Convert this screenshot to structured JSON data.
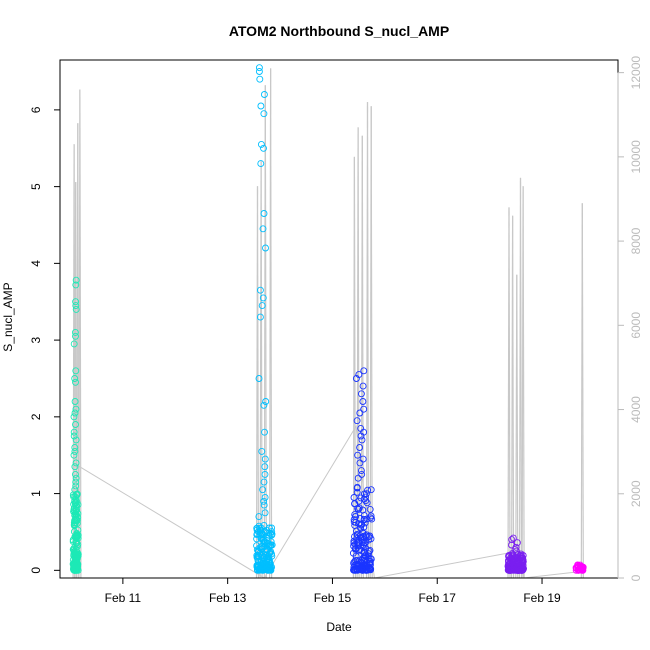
{
  "chart_data": {
    "type": "scatter",
    "title": "ATOM2 Northbound S_nucl_AMP",
    "xlabel": "Date",
    "ylabel": "S_nucl_AMP",
    "x_tick_labels": [
      "Feb 11",
      "Feb 13",
      "Feb 15",
      "Feb 17",
      "Feb 19"
    ],
    "x_tick_days": [
      11,
      13,
      15,
      17,
      19
    ],
    "xlim_days": [
      9.8,
      20.45
    ],
    "y_ticks": [
      "0",
      "1",
      "2",
      "3",
      "4",
      "5",
      "6"
    ],
    "ylim": [
      -0.1,
      6.65
    ],
    "y2_ticks": [
      "0",
      "2000",
      "4000",
      "6000",
      "8000",
      "10000",
      "12000"
    ],
    "y2lim": [
      0,
      12300
    ],
    "grid": false,
    "legend": "none",
    "colors": {
      "frame": "#000000",
      "secondary_axis": "#bbbbbb",
      "secondary_line": "#c8c8c8"
    },
    "series": [
      {
        "color": "#1de9b6",
        "day_range": [
          10.05,
          10.15
        ],
        "core_max": 1.0,
        "outliers": [
          3.78,
          3.72,
          3.5,
          3.45,
          3.4,
          3.1,
          3.05,
          2.95,
          2.6,
          2.5,
          2.45,
          2.2,
          2.1,
          2.05,
          2.0,
          1.9,
          1.8,
          1.75,
          1.7,
          1.6,
          1.55,
          1.5,
          1.4,
          1.35,
          1.25,
          1.2,
          1.15,
          1.1,
          1.05
        ]
      },
      {
        "color": "#00bfff",
        "day_range": [
          13.55,
          13.85
        ],
        "core_max": 0.6,
        "outliers": [
          6.55,
          6.5,
          6.4,
          6.2,
          6.05,
          5.95,
          5.55,
          5.5,
          5.3,
          4.65,
          4.45,
          4.2,
          3.65,
          3.55,
          3.45,
          3.3,
          2.5,
          2.2,
          2.15,
          1.8,
          1.55,
          1.45,
          1.35,
          1.25,
          1.15,
          1.05,
          0.95,
          0.9,
          0.85,
          0.75,
          0.7
        ]
      },
      {
        "color": "#1a35ff",
        "day_range": [
          15.4,
          15.75
        ],
        "core_max": 1.15,
        "outliers": [
          2.6,
          2.55,
          2.5,
          2.4,
          2.3,
          2.2,
          2.1,
          2.05,
          1.95,
          1.85,
          1.8,
          1.75,
          1.7,
          1.6,
          1.5,
          1.45,
          1.4,
          1.3,
          1.25,
          1.2
        ]
      },
      {
        "color": "#7a1ff0",
        "day_range": [
          18.35,
          18.65
        ],
        "core_max": 0.22,
        "outliers": [
          0.42,
          0.4,
          0.36,
          0.33,
          0.3,
          0.27,
          0.25
        ]
      },
      {
        "color": "#ff00ff",
        "day_range": [
          19.65,
          19.8
        ],
        "core_max": 0.07,
        "outliers": []
      }
    ],
    "secondary_series": {
      "color": "#c8c8c8",
      "trend": [
        {
          "x": 10.1,
          "y2": 2700
        },
        {
          "x": 13.7,
          "y2": 0
        },
        {
          "x": 15.45,
          "y2": 3600
        },
        {
          "x": 15.8,
          "y2": 0
        },
        {
          "x": 18.6,
          "y2": 650
        },
        {
          "x": 18.65,
          "y2": 0
        },
        {
          "x": 19.7,
          "y2": 150
        }
      ],
      "spikes": [
        {
          "x": 10.05,
          "y2": 10300
        },
        {
          "x": 10.08,
          "y2": 9400
        },
        {
          "x": 10.12,
          "y2": 10800
        },
        {
          "x": 10.16,
          "y2": 11600
        },
        {
          "x": 13.55,
          "y2": 9300
        },
        {
          "x": 13.62,
          "y2": 9900
        },
        {
          "x": 13.7,
          "y2": 11700
        },
        {
          "x": 13.8,
          "y2": 12100
        },
        {
          "x": 15.4,
          "y2": 10000
        },
        {
          "x": 15.47,
          "y2": 10700
        },
        {
          "x": 15.55,
          "y2": 10500
        },
        {
          "x": 15.65,
          "y2": 11300
        },
        {
          "x": 15.72,
          "y2": 11200
        },
        {
          "x": 18.35,
          "y2": 8800
        },
        {
          "x": 18.42,
          "y2": 8600
        },
        {
          "x": 18.5,
          "y2": 7200
        },
        {
          "x": 18.57,
          "y2": 9500
        },
        {
          "x": 18.62,
          "y2": 9300
        },
        {
          "x": 19.75,
          "y2": 8900
        }
      ]
    }
  }
}
